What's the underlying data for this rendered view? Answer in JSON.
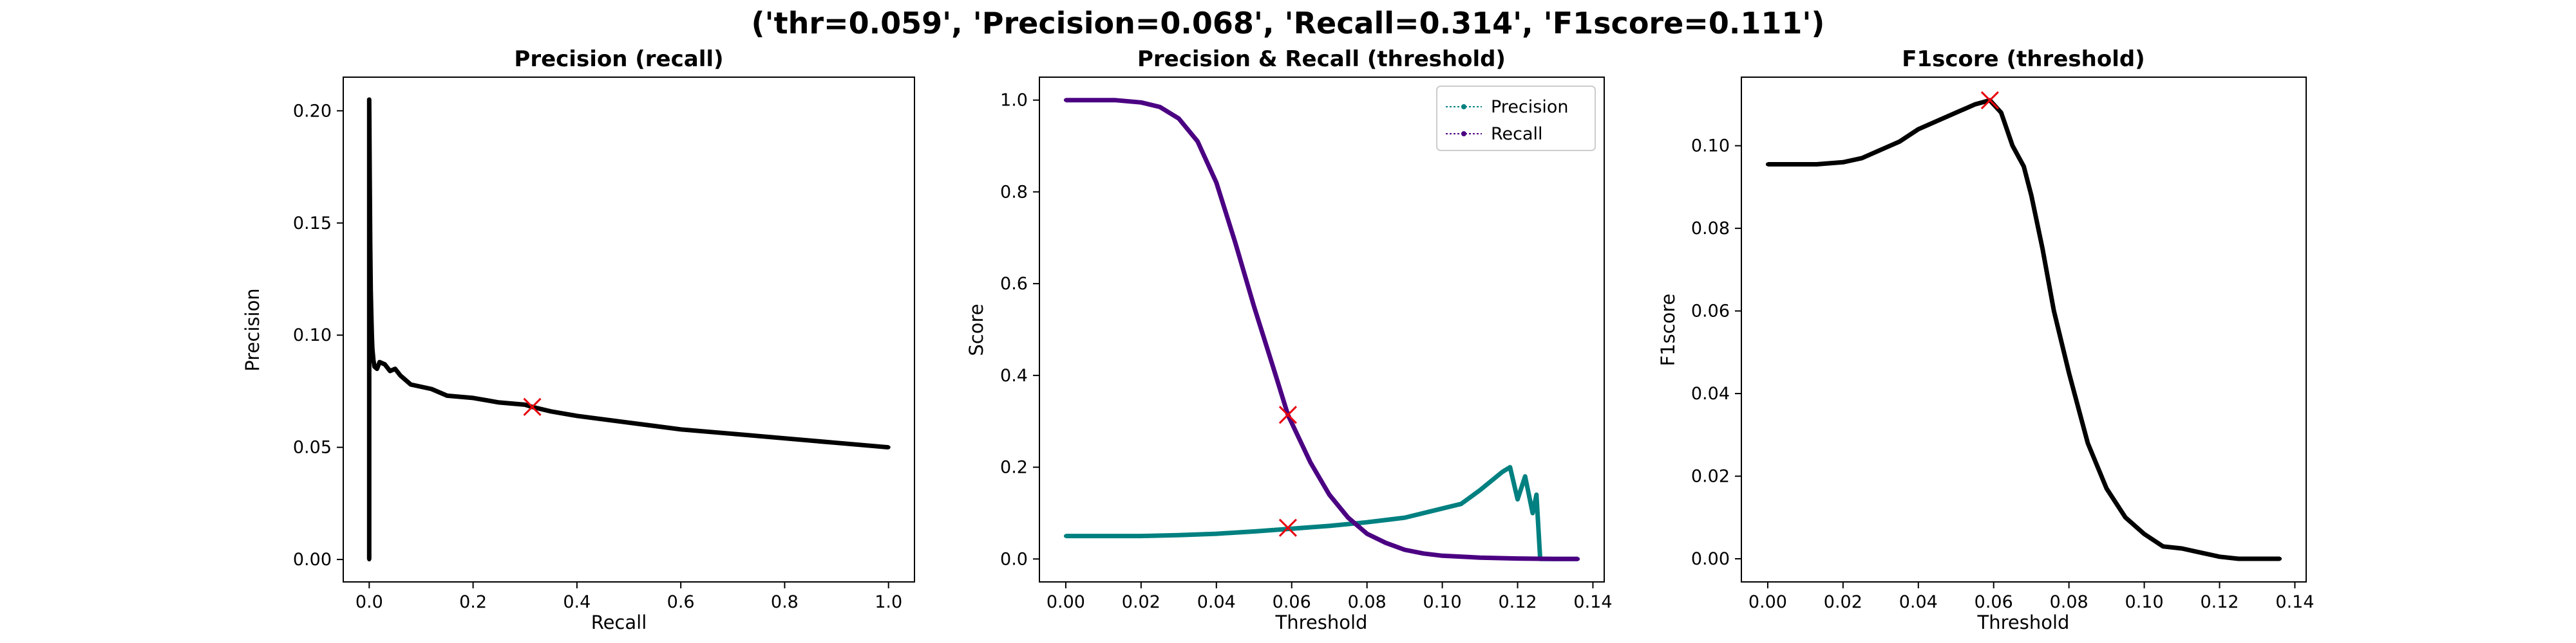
{
  "figure_title": "('thr=0.059', 'Precision=0.068', 'Recall=0.314', 'F1score=0.111')",
  "colors": {
    "precision": "#008080",
    "recall": "#4b0082",
    "f1": "#000000",
    "marker": "#e8000b"
  },
  "chart_data": [
    {
      "type": "line",
      "title": "Precision (recall)",
      "xlabel": "Recall",
      "ylabel": "Precision",
      "xlim": [
        -0.05,
        1.05
      ],
      "ylim": [
        -0.01,
        0.215
      ],
      "xticks": [
        0.0,
        0.2,
        0.4,
        0.6,
        0.8,
        1.0
      ],
      "yticks": [
        0.0,
        0.05,
        0.1,
        0.15,
        0.2
      ],
      "xtick_labels": [
        "0.0",
        "0.2",
        "0.4",
        "0.6",
        "0.8",
        "1.0"
      ],
      "ytick_labels": [
        "0.00",
        "0.05",
        "0.10",
        "0.15",
        "0.20"
      ],
      "series": [
        {
          "x": [
            0.0,
            0.0,
            0.0,
            0.0,
            0.0,
            0.001,
            0.002,
            0.003,
            0.004,
            0.005,
            0.006,
            0.008,
            0.01,
            0.015,
            0.02,
            0.03,
            0.04,
            0.05,
            0.06,
            0.08,
            0.1,
            0.12,
            0.15,
            0.2,
            0.25,
            0.3,
            0.314,
            0.35,
            0.4,
            0.5,
            0.6,
            0.7,
            0.8,
            0.9,
            1.0
          ],
          "y": [
            0.0,
            0.07,
            0.09,
            0.1,
            0.205,
            0.17,
            0.14,
            0.12,
            0.11,
            0.1,
            0.094,
            0.089,
            0.086,
            0.085,
            0.088,
            0.087,
            0.084,
            0.085,
            0.082,
            0.078,
            0.077,
            0.076,
            0.073,
            0.072,
            0.07,
            0.069,
            0.068,
            0.066,
            0.064,
            0.061,
            0.058,
            0.056,
            0.054,
            0.052,
            0.05
          ]
        }
      ],
      "marker": {
        "x": 0.314,
        "y": 0.068
      }
    },
    {
      "type": "line",
      "title": "Precision & Recall (threshold)",
      "xlabel": "Threshold",
      "ylabel": "Score",
      "xlim": [
        -0.007,
        0.143
      ],
      "ylim": [
        -0.05,
        1.05
      ],
      "xticks": [
        0.0,
        0.02,
        0.04,
        0.06,
        0.08,
        0.1,
        0.12,
        0.14
      ],
      "yticks": [
        0.0,
        0.2,
        0.4,
        0.6,
        0.8,
        1.0
      ],
      "xtick_labels": [
        "0.00",
        "0.02",
        "0.04",
        "0.06",
        "0.08",
        "0.10",
        "0.12",
        "0.14"
      ],
      "ytick_labels": [
        "0.0",
        "0.2",
        "0.4",
        "0.6",
        "0.8",
        "1.0"
      ],
      "legend": {
        "position": "top-right"
      },
      "series": [
        {
          "name": "Precision",
          "x": [
            0.0,
            0.013,
            0.02,
            0.03,
            0.04,
            0.05,
            0.06,
            0.07,
            0.08,
            0.09,
            0.1,
            0.105,
            0.11,
            0.113,
            0.116,
            0.118,
            0.12,
            0.122,
            0.124,
            0.125,
            0.126,
            0.13,
            0.136
          ],
          "y": [
            0.05,
            0.05,
            0.05,
            0.052,
            0.055,
            0.06,
            0.066,
            0.072,
            0.08,
            0.09,
            0.11,
            0.12,
            0.15,
            0.17,
            0.19,
            0.2,
            0.13,
            0.18,
            0.1,
            0.14,
            0.0,
            0.0,
            0.0
          ]
        },
        {
          "name": "Recall",
          "x": [
            0.0,
            0.013,
            0.02,
            0.025,
            0.03,
            0.035,
            0.04,
            0.045,
            0.05,
            0.055,
            0.059,
            0.065,
            0.07,
            0.075,
            0.08,
            0.085,
            0.09,
            0.095,
            0.1,
            0.11,
            0.12,
            0.13,
            0.136
          ],
          "y": [
            1.0,
            1.0,
            0.995,
            0.985,
            0.96,
            0.91,
            0.82,
            0.69,
            0.55,
            0.42,
            0.314,
            0.21,
            0.14,
            0.09,
            0.055,
            0.035,
            0.02,
            0.012,
            0.007,
            0.003,
            0.001,
            0.0,
            0.0
          ]
        }
      ],
      "markers": [
        {
          "x": 0.059,
          "y": 0.314
        },
        {
          "x": 0.059,
          "y": 0.068
        }
      ]
    },
    {
      "type": "line",
      "title": "F1score (threshold)",
      "xlabel": "Threshold",
      "ylabel": "F1score",
      "xlim": [
        -0.007,
        0.143
      ],
      "ylim": [
        -0.0056,
        0.1166
      ],
      "xticks": [
        0.0,
        0.02,
        0.04,
        0.06,
        0.08,
        0.1,
        0.12,
        0.14
      ],
      "yticks": [
        0.0,
        0.02,
        0.04,
        0.06,
        0.08,
        0.1
      ],
      "xtick_labels": [
        "0.00",
        "0.02",
        "0.04",
        "0.06",
        "0.08",
        "0.10",
        "0.12",
        "0.14"
      ],
      "ytick_labels": [
        "0.00",
        "0.02",
        "0.04",
        "0.06",
        "0.08",
        "0.10"
      ],
      "series": [
        {
          "x": [
            0.0,
            0.013,
            0.02,
            0.025,
            0.03,
            0.035,
            0.04,
            0.045,
            0.05,
            0.055,
            0.059,
            0.062,
            0.065,
            0.068,
            0.07,
            0.073,
            0.076,
            0.08,
            0.085,
            0.09,
            0.095,
            0.1,
            0.105,
            0.11,
            0.115,
            0.12,
            0.125,
            0.13,
            0.136
          ],
          "y": [
            0.0955,
            0.0955,
            0.096,
            0.097,
            0.099,
            0.101,
            0.104,
            0.106,
            0.108,
            0.11,
            0.111,
            0.108,
            0.1,
            0.095,
            0.088,
            0.075,
            0.06,
            0.045,
            0.028,
            0.017,
            0.01,
            0.006,
            0.003,
            0.0025,
            0.0015,
            0.0005,
            0.0,
            0.0,
            0.0
          ]
        }
      ],
      "marker": {
        "x": 0.059,
        "y": 0.111
      }
    }
  ]
}
